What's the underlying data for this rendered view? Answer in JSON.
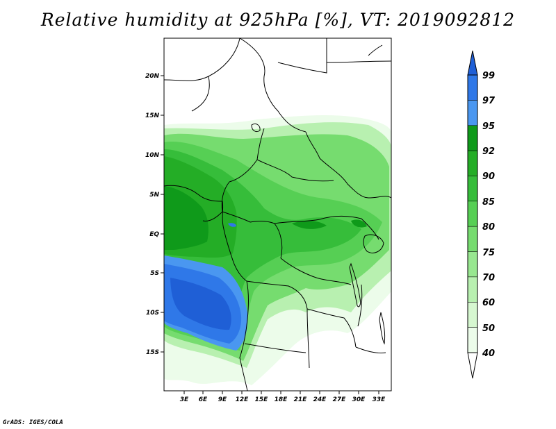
{
  "title": "Relative humidity at 925hPa [%], VT: 2019092812",
  "footer": "GrADS: IGES/COLA",
  "map": {
    "lon_labels": [
      "3E",
      "6E",
      "9E",
      "12E",
      "15E",
      "18E",
      "21E",
      "24E",
      "27E",
      "30E",
      "33E"
    ],
    "lat_labels": [
      "20N",
      "15N",
      "10N",
      "5N",
      "EQ",
      "5S",
      "10S",
      "15S"
    ]
  },
  "colorbar": {
    "labels": [
      "99",
      "97",
      "95",
      "92",
      "90",
      "85",
      "80",
      "75",
      "70",
      "60",
      "50",
      "40"
    ],
    "colors": [
      "#1f5fd6",
      "#2f78e8",
      "#4a97f0",
      "#0f9a1a",
      "#24ad26",
      "#36bd3a",
      "#56cf54",
      "#76dc6f",
      "#98e790",
      "#b8f0b0",
      "#d6f7d0",
      "#ecfcea"
    ]
  }
}
